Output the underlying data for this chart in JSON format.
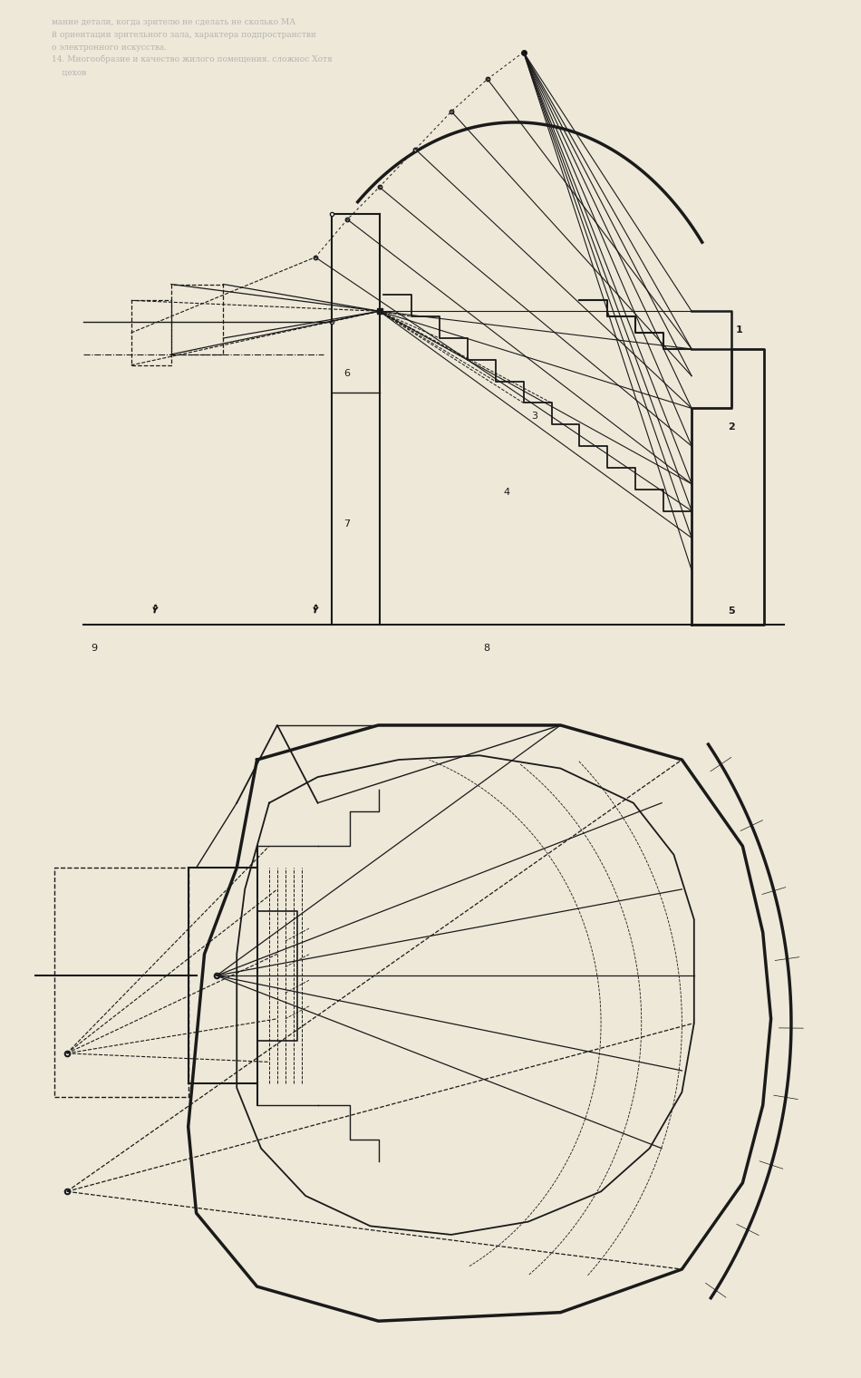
{
  "bg_color": "#ede8d8",
  "line_color": "#1a1a1a",
  "fig_width": 9.5,
  "fig_height": 15.2,
  "top1_russian": "мание детали, когда зрителю не сделать не сколько МА",
  "top2_russian": "й ориентации зрительного зала, характера подпространстви",
  "top3_russian": "о электронного искусства.",
  "top4_russian": "14. Многообразие и качество жилого помещения. сложнос Хотя",
  "top5_russian": "    цехов"
}
